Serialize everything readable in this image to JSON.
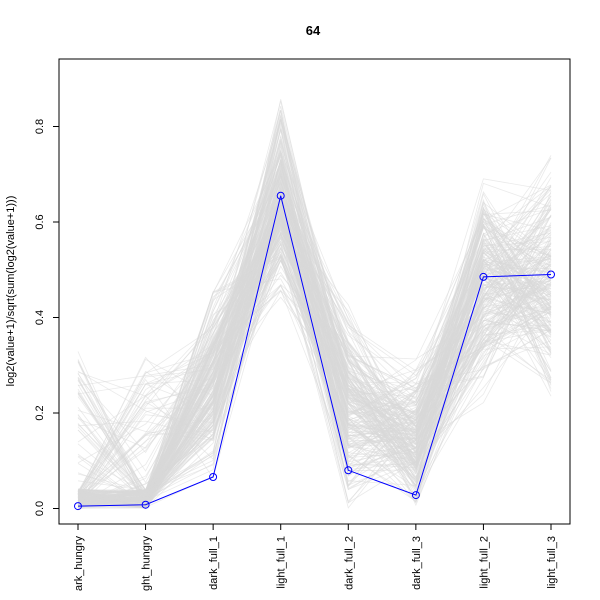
{
  "chart_data": {
    "type": "line",
    "title": "64",
    "xlabel": "",
    "ylabel": "log2(value+1)/sqrt(sum(log2(value+1)))",
    "categories": [
      "dark_hungry",
      "light_hungry",
      "dark_full_1",
      "light_full_1",
      "dark_full_2",
      "dark_full_3",
      "light_full_2",
      "light_full_3"
    ],
    "category_labels": [
      "ark_hungry",
      "ght_hungry",
      "dark_full_1",
      "light_full_1",
      "dark_full_2",
      "dark_full_3",
      "light_full_2",
      "light_full_3"
    ],
    "ylim": [
      -0.03,
      0.94
    ],
    "yticks": [
      0.0,
      0.2,
      0.4,
      0.6,
      0.8
    ],
    "ytick_labels": [
      "0.0",
      "0.2",
      "0.4",
      "0.6",
      "0.8"
    ],
    "background_series": {
      "color": "#d9d9d9",
      "description_ranges": {
        "dark_hungry": [
          0.0,
          0.33
        ],
        "light_hungry": [
          0.0,
          0.33
        ],
        "dark_full_1": [
          0.0,
          0.46
        ],
        "light_full_1": [
          0.44,
          0.9
        ],
        "dark_full_2": [
          0.0,
          0.5
        ],
        "dark_full_3": [
          0.0,
          0.35
        ],
        "light_full_2": [
          0.16,
          0.7
        ],
        "light_full_3": [
          0.16,
          0.74
        ]
      }
    },
    "series": [
      {
        "color": "#0000ff",
        "values": [
          0.005,
          0.008,
          0.066,
          0.655,
          0.08,
          0.028,
          0.485,
          0.49
        ]
      }
    ],
    "grid": false
  }
}
